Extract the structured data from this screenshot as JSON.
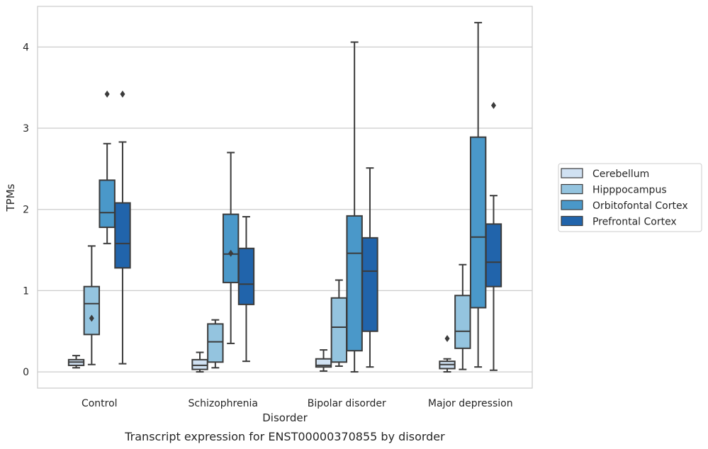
{
  "chart_data": {
    "type": "box",
    "caption": "Transcript expression for ENST00000370855 by disorder",
    "xlabel": "Disorder",
    "ylabel": "TPMs",
    "ylim": [
      -0.2,
      4.5
    ],
    "yticks": [
      0,
      1,
      2,
      3,
      4
    ],
    "grid": "horizontal",
    "legend_placement": "right",
    "categories": [
      "Control",
      "Schizophrenia",
      "Bipolar disorder",
      "Major depression"
    ],
    "series": [
      {
        "name": "Cerebellum",
        "color": "#d0e1f2",
        "boxes": [
          {
            "whislo": 0.05,
            "q1": 0.08,
            "med": 0.12,
            "q3": 0.15,
            "whishi": 0.2,
            "fliers": []
          },
          {
            "whislo": 0.0,
            "q1": 0.03,
            "med": 0.08,
            "q3": 0.15,
            "whishi": 0.24,
            "fliers": []
          },
          {
            "whislo": 0.01,
            "q1": 0.06,
            "med": 0.08,
            "q3": 0.16,
            "whishi": 0.27,
            "fliers": []
          },
          {
            "whislo": 0.0,
            "q1": 0.04,
            "med": 0.09,
            "q3": 0.13,
            "whishi": 0.16,
            "fliers": [
              0.41
            ]
          }
        ]
      },
      {
        "name": "Hipppocampus",
        "color": "#94c4df",
        "boxes": [
          {
            "whislo": 0.09,
            "q1": 0.46,
            "med": 0.84,
            "q3": 1.05,
            "whishi": 1.55,
            "fliers": [
              0.66
            ]
          },
          {
            "whislo": 0.05,
            "q1": 0.12,
            "med": 0.37,
            "q3": 0.59,
            "whishi": 0.64,
            "fliers": []
          },
          {
            "whislo": 0.07,
            "q1": 0.12,
            "med": 0.55,
            "q3": 0.91,
            "whishi": 1.13,
            "fliers": []
          },
          {
            "whislo": 0.03,
            "q1": 0.29,
            "med": 0.5,
            "q3": 0.94,
            "whishi": 1.32,
            "fliers": []
          }
        ]
      },
      {
        "name": "Orbitofontal Cortex",
        "color": "#4a98c9",
        "boxes": [
          {
            "whislo": 1.58,
            "q1": 1.78,
            "med": 1.96,
            "q3": 2.36,
            "whishi": 2.81,
            "fliers": [
              3.42
            ]
          },
          {
            "whislo": 0.35,
            "q1": 1.1,
            "med": 1.45,
            "q3": 1.94,
            "whishi": 2.7,
            "fliers": [
              1.46
            ]
          },
          {
            "whislo": 0.0,
            "q1": 0.26,
            "med": 1.46,
            "q3": 1.92,
            "whishi": 4.06,
            "fliers": []
          },
          {
            "whislo": 0.06,
            "q1": 0.79,
            "med": 1.66,
            "q3": 2.89,
            "whishi": 4.3,
            "fliers": []
          }
        ]
      },
      {
        "name": "Prefrontal Cortex",
        "color": "#2164ab",
        "boxes": [
          {
            "whislo": 0.1,
            "q1": 1.28,
            "med": 1.58,
            "q3": 2.08,
            "whishi": 2.83,
            "fliers": [
              3.42
            ]
          },
          {
            "whislo": 0.13,
            "q1": 0.83,
            "med": 1.08,
            "q3": 1.52,
            "whishi": 1.91,
            "fliers": []
          },
          {
            "whislo": 0.06,
            "q1": 0.5,
            "med": 1.24,
            "q3": 1.65,
            "whishi": 2.51,
            "fliers": []
          },
          {
            "whislo": 0.02,
            "q1": 1.05,
            "med": 1.35,
            "q3": 1.82,
            "whishi": 2.17,
            "fliers": [
              3.28
            ]
          }
        ]
      }
    ]
  }
}
